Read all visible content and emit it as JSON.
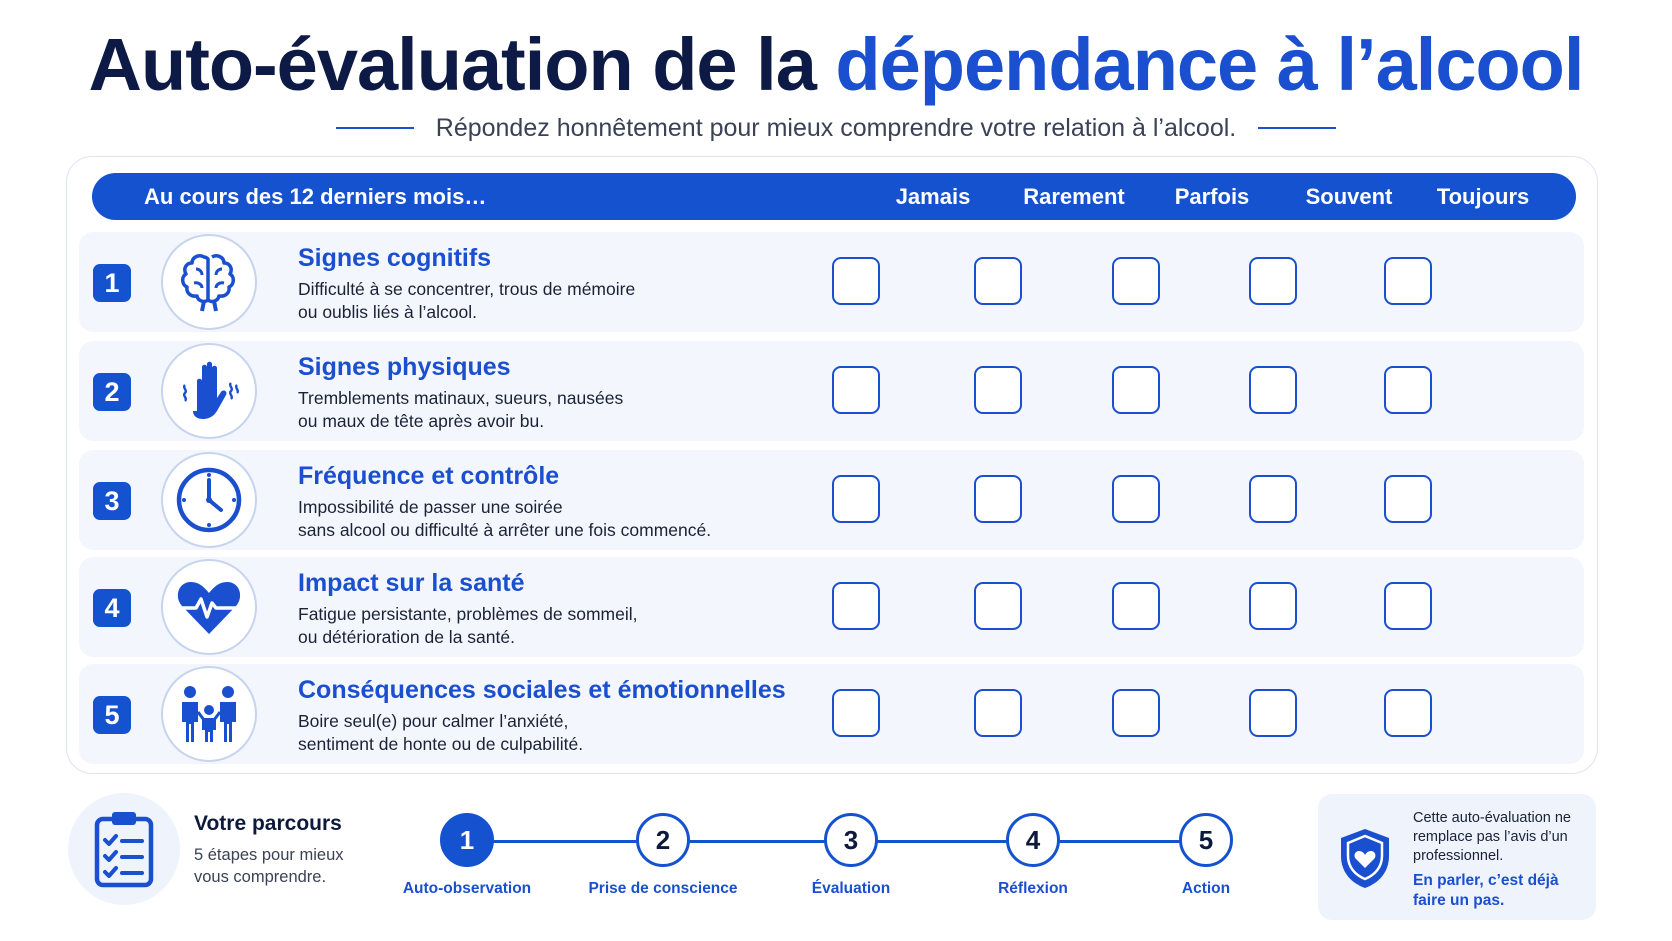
{
  "header": {
    "title_part1": "Auto-évaluation de la ",
    "title_part2": "dépendance à l’alcool",
    "subtitle": "Répondez honnêtement pour mieux comprendre votre relation à l’alcool."
  },
  "table": {
    "period_label": "Au cours des 12 derniers mois…",
    "columns": [
      "Jamais",
      "Rarement",
      "Parfois",
      "Souvent",
      "Toujours"
    ],
    "rows": [
      {
        "num": "1",
        "icon": "brain-icon",
        "title": "Signes cognitifs",
        "desc1": "Difficulté à se concentrer, trous de mémoire",
        "desc2": "ou oublis liés à l’alcool."
      },
      {
        "num": "2",
        "icon": "trembling-hand-icon",
        "title": "Signes physiques",
        "desc1": "Tremblements matinaux, sueurs, nausées",
        "desc2": "ou maux de tête après avoir bu."
      },
      {
        "num": "3",
        "icon": "clock-icon",
        "title": "Fréquence et contrôle",
        "desc1": "Impossibilité de passer une soirée",
        "desc2": "sans alcool ou difficulté à arrêter une fois commencé."
      },
      {
        "num": "4",
        "icon": "heartbeat-icon",
        "title": "Impact sur la santé",
        "desc1": "Fatigue persistante, problèmes de sommeil,",
        "desc2": "ou détérioration de la santé."
      },
      {
        "num": "5",
        "icon": "family-icon",
        "title": "Conséquences sociales et émotionnelles",
        "desc1": "Boire seul(e) pour calmer l’anxiété,",
        "desc2": "sentiment de honte ou de culpabilité."
      }
    ]
  },
  "journey": {
    "icon": "clipboard-checklist-icon",
    "title": "Votre parcours",
    "desc": "5 étapes pour mieux vous comprendre.",
    "steps": [
      {
        "num": "1",
        "label": "Auto-observation"
      },
      {
        "num": "2",
        "label": "Prise de conscience"
      },
      {
        "num": "3",
        "label": "Évaluation"
      },
      {
        "num": "4",
        "label": "Réflexion"
      },
      {
        "num": "5",
        "label": "Action"
      }
    ]
  },
  "note": {
    "icon": "shield-heart-icon",
    "text": "Cette auto-évaluation ne remplace pas l’avis d’un professionnel.",
    "bold": "En parler, c’est déjà faire un pas."
  },
  "colors": {
    "primary": "#1452cf",
    "accent": "#1a4fd0",
    "dark": "#0c1a45",
    "row_bg": "#f3f6fc"
  }
}
